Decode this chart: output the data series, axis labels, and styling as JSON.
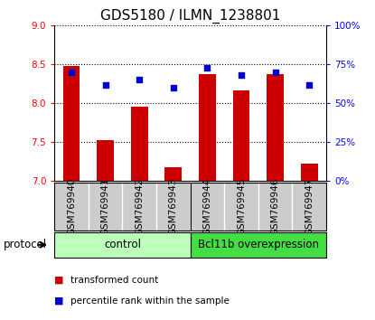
{
  "title": "GDS5180 / ILMN_1238801",
  "samples": [
    "GSM769940",
    "GSM769941",
    "GSM769942",
    "GSM769943",
    "GSM769944",
    "GSM769945",
    "GSM769946",
    "GSM769947"
  ],
  "transformed_count": [
    8.48,
    7.52,
    7.95,
    7.17,
    8.38,
    8.17,
    8.37,
    7.22
  ],
  "percentile_rank": [
    70,
    62,
    65,
    60,
    73,
    68,
    70,
    62
  ],
  "ylim_left": [
    7,
    9
  ],
  "ylim_right": [
    0,
    100
  ],
  "yticks_left": [
    7,
    7.5,
    8,
    8.5,
    9
  ],
  "yticks_right": [
    0,
    25,
    50,
    75,
    100
  ],
  "ytick_labels_right": [
    "0%",
    "25%",
    "50%",
    "75%",
    "100%"
  ],
  "bar_color": "#cc0000",
  "dot_color": "#0000cc",
  "bar_bottom": 7,
  "groups": [
    {
      "label": "control",
      "start": 0,
      "end": 4,
      "color": "#bbffbb"
    },
    {
      "label": "Bcl11b overexpression",
      "start": 4,
      "end": 8,
      "color": "#44dd44"
    }
  ],
  "protocol_label": "protocol",
  "legend_bar_label": "transformed count",
  "legend_dot_label": "percentile rank within the sample",
  "title_fontsize": 11,
  "tick_fontsize": 7.5,
  "label_fontsize": 8.5,
  "sample_cell_color": "#cccccc",
  "sample_divider_color": "#ffffff"
}
